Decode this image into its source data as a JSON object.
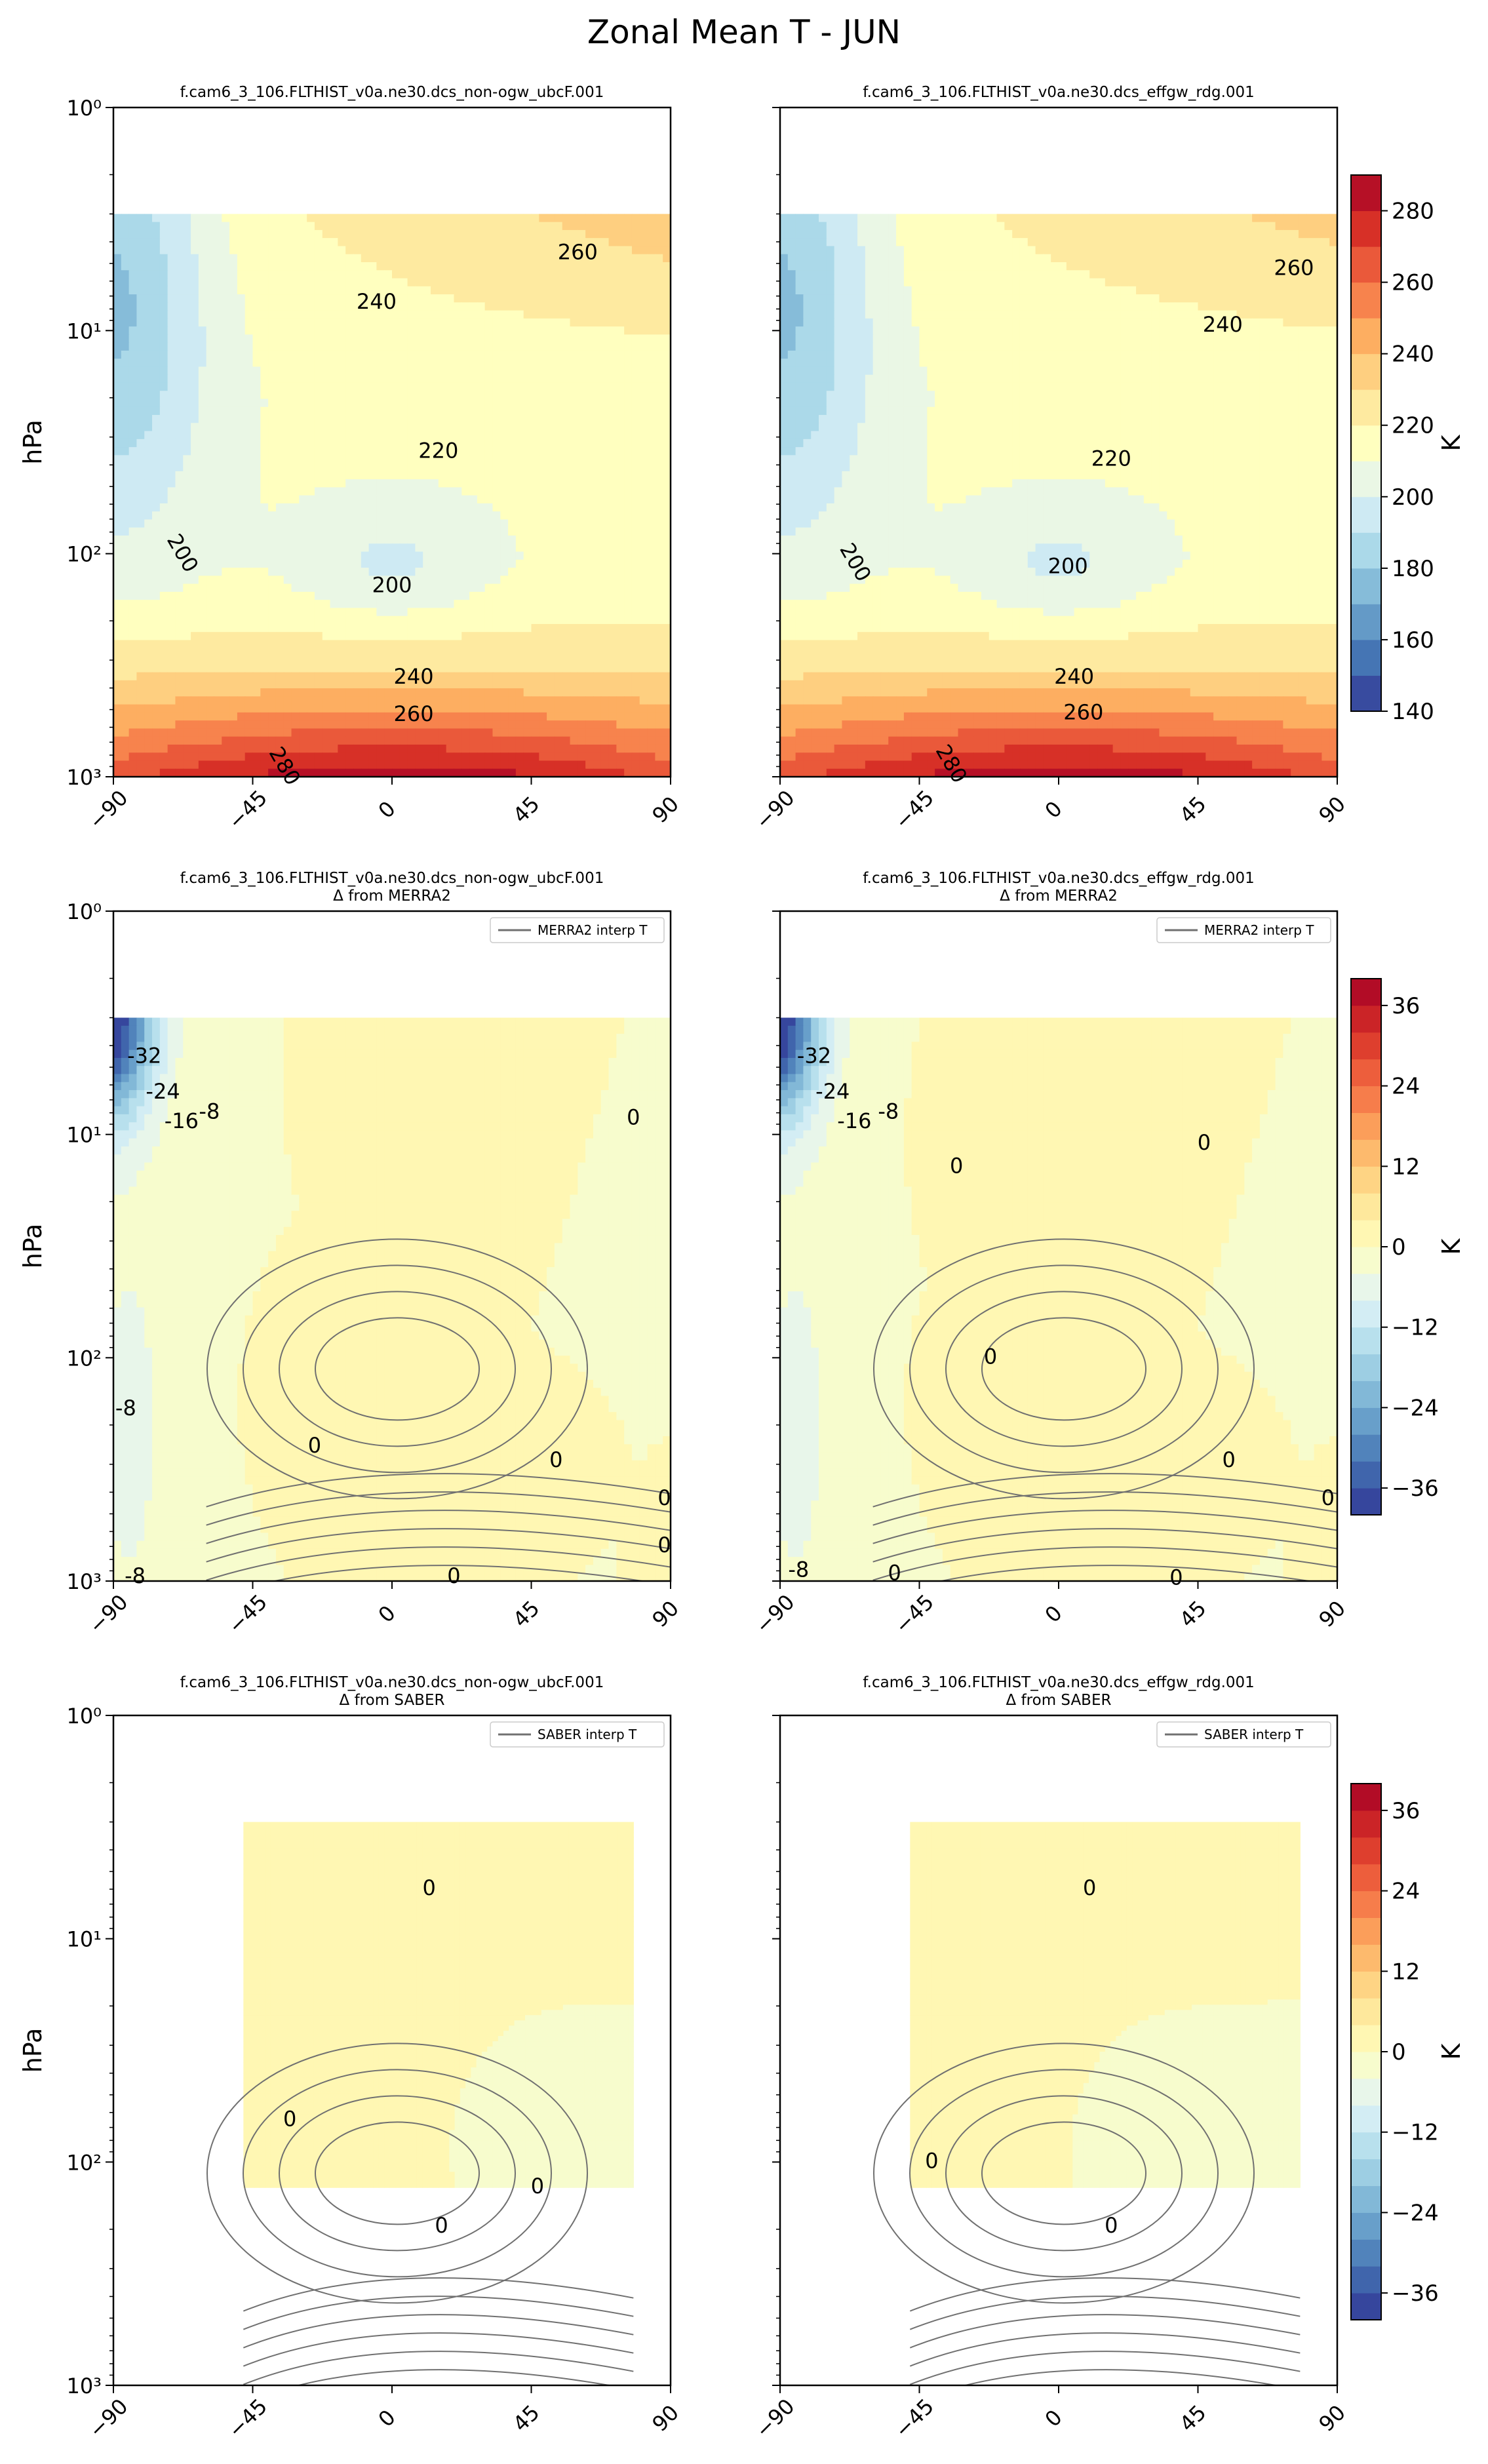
{
  "figure": {
    "title": "Zonal Mean T - JUN",
    "colors": {
      "cold": "#313695",
      "neutral": "#f7fbc8",
      "warm": "#a50026"
    }
  },
  "chart_data": [
    {
      "type": "heatmap",
      "panel": "abs-1",
      "title_lines": [
        "f.cam6_3_106.FLTHIST_v0a.ne30.dcs_non-ogw_ubcF.001"
      ],
      "ylabel": "hPa",
      "xlabel": "",
      "x_ticks": [
        "−90",
        "−45",
        "0",
        "45",
        "90"
      ],
      "y_ticks": [
        "10⁰",
        "10¹",
        "10²",
        "10³"
      ],
      "xlim": [
        -90,
        90
      ],
      "ylim_hpa": [
        1000,
        1
      ],
      "y_scale": "log",
      "data_top_hpa": 3,
      "field": "temperature",
      "units": "K",
      "contour_labels": [
        {
          "text": "260",
          "lat": 60,
          "p": 4.5
        },
        {
          "text": "240",
          "lat": -5,
          "p": 7.5
        },
        {
          "text": "220",
          "lat": 15,
          "p": 35
        },
        {
          "text": "200",
          "lat": 0,
          "p": 140
        },
        {
          "text": "200",
          "lat": -68,
          "p": 100,
          "rot": 60
        },
        {
          "text": "240",
          "lat": 7,
          "p": 360
        },
        {
          "text": "260",
          "lat": 7,
          "p": 530
        },
        {
          "text": "280",
          "lat": -35,
          "p": 900,
          "rot": 60
        }
      ]
    },
    {
      "type": "heatmap",
      "panel": "abs-2",
      "title_lines": [
        "f.cam6_3_106.FLTHIST_v0a.ne30.dcs_effgw_rdg.001"
      ],
      "ylabel": "",
      "xlabel": "",
      "x_ticks": [
        "−90",
        "−45",
        "0",
        "45",
        "90"
      ],
      "y_ticks": [],
      "xlim": [
        -90,
        90
      ],
      "ylim_hpa": [
        1000,
        1
      ],
      "y_scale": "log",
      "data_top_hpa": 3,
      "field": "temperature",
      "units": "K",
      "contour_labels": [
        {
          "text": "260",
          "lat": 76,
          "p": 5.3
        },
        {
          "text": "240",
          "lat": 53,
          "p": 9.5
        },
        {
          "text": "220",
          "lat": 17,
          "p": 38
        },
        {
          "text": "200",
          "lat": 3,
          "p": 115
        },
        {
          "text": "200",
          "lat": -66,
          "p": 110,
          "rot": 60
        },
        {
          "text": "240",
          "lat": 5,
          "p": 360
        },
        {
          "text": "260",
          "lat": 8,
          "p": 520
        },
        {
          "text": "280",
          "lat": -35,
          "p": 880,
          "rot": 60
        }
      ]
    },
    {
      "type": "heatmap",
      "panel": "diff-merra-1",
      "title_lines": [
        "f.cam6_3_106.FLTHIST_v0a.ne30.dcs_non-ogw_ubcF.001",
        "Δ from MERRA2"
      ],
      "legend": "MERRA2 interp T",
      "ylabel": "hPa",
      "xlabel": "",
      "x_ticks": [
        "−90",
        "−45",
        "0",
        "45",
        "90"
      ],
      "y_ticks": [
        "10⁰",
        "10¹",
        "10²",
        "10³"
      ],
      "xlim": [
        -90,
        90
      ],
      "ylim_hpa": [
        1000,
        1
      ],
      "y_scale": "log",
      "data_top_hpa": 3,
      "field": "temperature difference",
      "units": "K",
      "contour_labels": [
        {
          "text": "-32",
          "lat": -80,
          "p": 4.5
        },
        {
          "text": "-24",
          "lat": -74,
          "p": 6.5
        },
        {
          "text": "-16",
          "lat": -68,
          "p": 8.8
        },
        {
          "text": "-8",
          "lat": -59,
          "p": 8
        },
        {
          "text": "0",
          "lat": 78,
          "p": 8.5
        },
        {
          "text": "-8",
          "lat": -86,
          "p": 170
        },
        {
          "text": "0",
          "lat": -25,
          "p": 250
        },
        {
          "text": "0",
          "lat": 53,
          "p": 290
        },
        {
          "text": "0",
          "lat": 88,
          "p": 430
        },
        {
          "text": "0",
          "lat": 88,
          "p": 700
        },
        {
          "text": "-8",
          "lat": -83,
          "p": 960
        },
        {
          "text": "0",
          "lat": 20,
          "p": 960
        }
      ]
    },
    {
      "type": "heatmap",
      "panel": "diff-merra-2",
      "title_lines": [
        "f.cam6_3_106.FLTHIST_v0a.ne30.dcs_effgw_rdg.001",
        "Δ from MERRA2"
      ],
      "legend": "MERRA2 interp T",
      "ylabel": "",
      "xlabel": "",
      "x_ticks": [
        "−90",
        "−45",
        "0",
        "45",
        "90"
      ],
      "y_ticks": [],
      "xlim": [
        -90,
        90
      ],
      "ylim_hpa": [
        1000,
        1
      ],
      "y_scale": "log",
      "data_top_hpa": 3,
      "field": "temperature difference",
      "units": "K",
      "contour_labels": [
        {
          "text": "-32",
          "lat": -79,
          "p": 4.5
        },
        {
          "text": "-24",
          "lat": -73,
          "p": 6.5
        },
        {
          "text": "-16",
          "lat": -66,
          "p": 8.8
        },
        {
          "text": "-8",
          "lat": -55,
          "p": 8
        },
        {
          "text": "0",
          "lat": -33,
          "p": 14
        },
        {
          "text": "0",
          "lat": 47,
          "p": 11
        },
        {
          "text": "0",
          "lat": -22,
          "p": 100
        },
        {
          "text": "0",
          "lat": 55,
          "p": 290
        },
        {
          "text": "0",
          "lat": 87,
          "p": 430
        },
        {
          "text": "-8",
          "lat": -84,
          "p": 900
        },
        {
          "text": "0",
          "lat": -53,
          "p": 930
        },
        {
          "text": "0",
          "lat": 38,
          "p": 975
        }
      ]
    },
    {
      "type": "heatmap",
      "panel": "diff-saber-1",
      "title_lines": [
        "f.cam6_3_106.FLTHIST_v0a.ne30.dcs_non-ogw_ubcF.001",
        "Δ from SABER"
      ],
      "legend": "SABER interp T",
      "ylabel": "hPa",
      "xlabel": "",
      "x_ticks": [
        "−90",
        "−45",
        "0",
        "45",
        "90"
      ],
      "y_ticks": [
        "10⁰",
        "10¹",
        "10²",
        "10³"
      ],
      "xlim": [
        -90,
        90
      ],
      "ylim_hpa": [
        1000,
        1
      ],
      "y_scale": "log",
      "data_region": {
        "lat": [
          -48,
          78
        ],
        "p_hpa": [
          3,
          130
        ]
      },
      "field": "temperature difference",
      "units": "K",
      "contour_labels": [
        {
          "text": "0",
          "lat": 12,
          "p": 6
        },
        {
          "text": "0",
          "lat": -33,
          "p": 65
        },
        {
          "text": "0",
          "lat": 47,
          "p": 130
        },
        {
          "text": "0",
          "lat": 16,
          "p": 195
        }
      ]
    },
    {
      "type": "heatmap",
      "panel": "diff-saber-2",
      "title_lines": [
        "f.cam6_3_106.FLTHIST_v0a.ne30.dcs_effgw_rdg.001",
        "Δ from SABER"
      ],
      "legend": "SABER interp T",
      "ylabel": "",
      "xlabel": "",
      "x_ticks": [
        "−90",
        "−45",
        "0",
        "45",
        "90"
      ],
      "y_ticks": [],
      "xlim": [
        -90,
        90
      ],
      "ylim_hpa": [
        1000,
        1
      ],
      "y_scale": "log",
      "data_region": {
        "lat": [
          -48,
          78
        ],
        "p_hpa": [
          3,
          130
        ]
      },
      "field": "temperature difference",
      "units": "K",
      "contour_labels": [
        {
          "text": "0",
          "lat": 10,
          "p": 6
        },
        {
          "text": "0",
          "lat": -41,
          "p": 100
        },
        {
          "text": "0",
          "lat": 17,
          "p": 195
        }
      ]
    }
  ],
  "colorbars": [
    {
      "id": "cb-temperature",
      "label": "K",
      "min": 140,
      "max": 290,
      "step": 10,
      "ticks": [
        "140",
        "160",
        "180",
        "200",
        "220",
        "240",
        "260",
        "280"
      ],
      "tick_values": [
        140,
        160,
        180,
        200,
        220,
        240,
        260,
        280
      ]
    },
    {
      "id": "cb-diff-merra",
      "label": "K",
      "min": -40,
      "max": 40,
      "step": 4,
      "ticks": [
        "−36",
        "−24",
        "−12",
        "0",
        "12",
        "24",
        "36"
      ],
      "tick_values": [
        -36,
        -24,
        -12,
        0,
        12,
        24,
        36
      ]
    },
    {
      "id": "cb-diff-saber",
      "label": "K",
      "min": -40,
      "max": 40,
      "step": 4,
      "ticks": [
        "−36",
        "−24",
        "−12",
        "0",
        "12",
        "24",
        "36"
      ],
      "tick_values": [
        -36,
        -24,
        -12,
        0,
        12,
        24,
        36
      ]
    }
  ]
}
